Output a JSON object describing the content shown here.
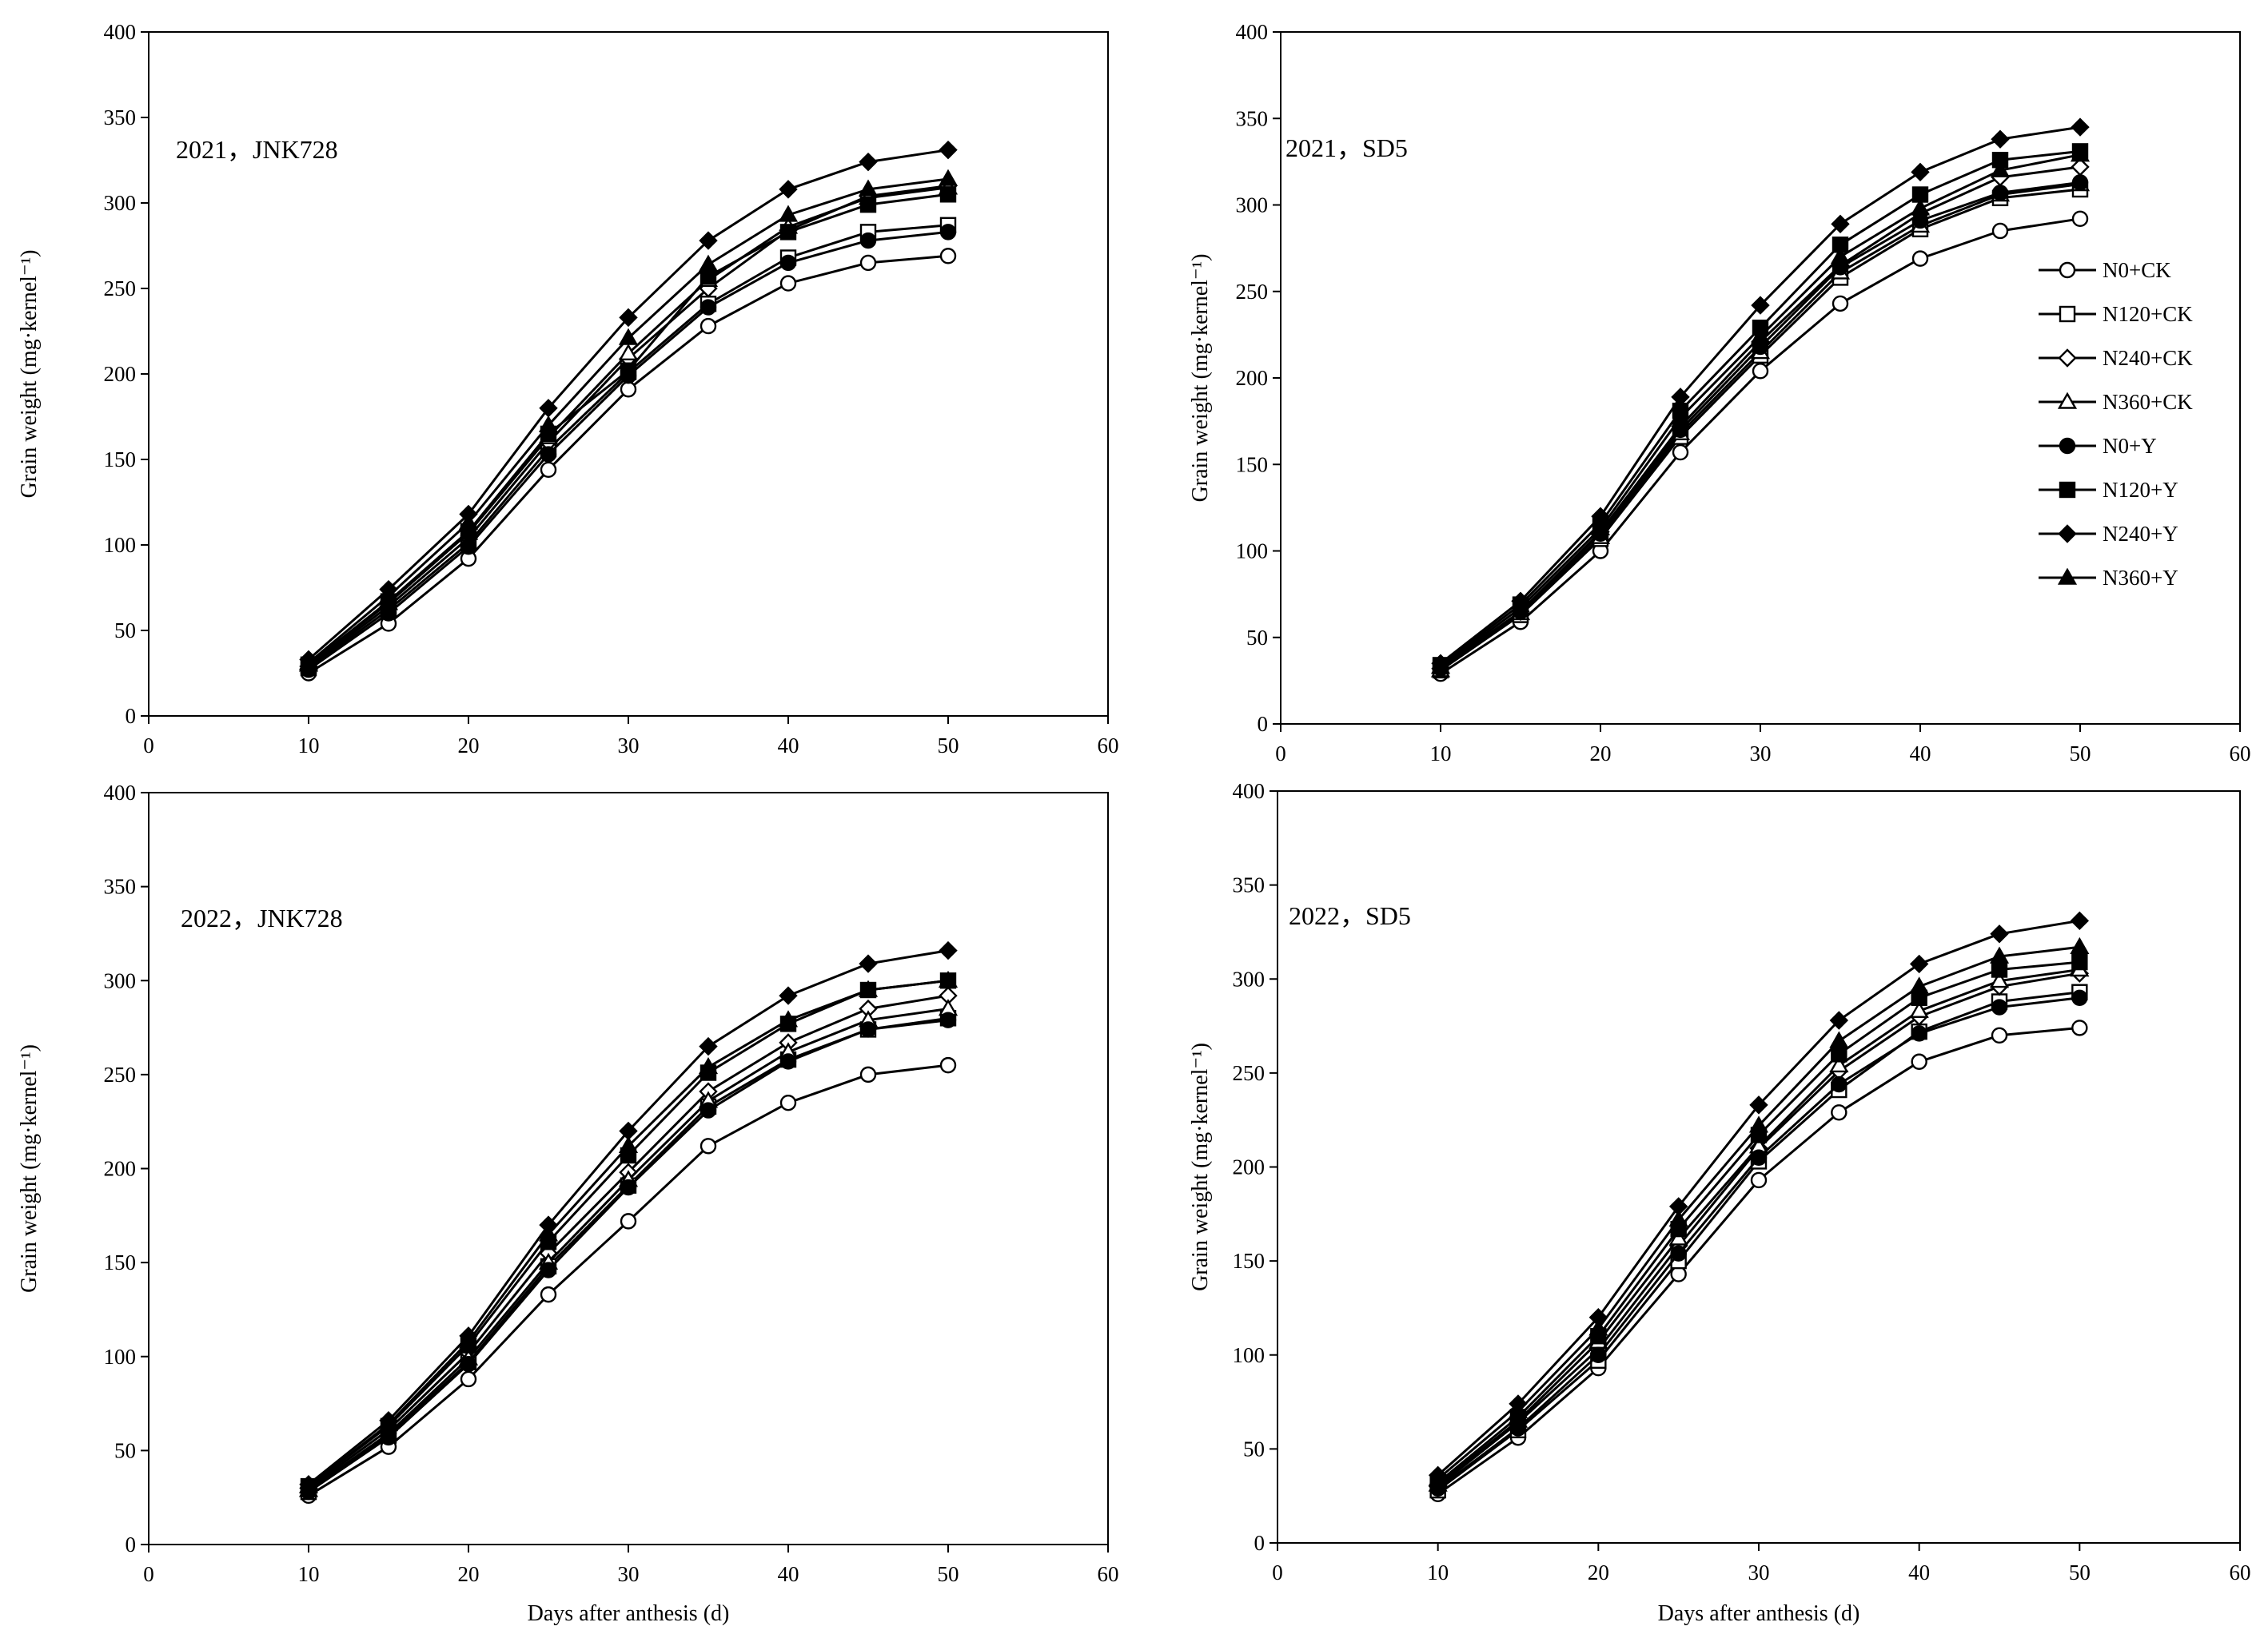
{
  "chart_data": [
    {
      "type": "line",
      "title": "2021，JNK728",
      "xlabel": "",
      "ylabel": "Grain weight (mg·kernel⁻¹)",
      "xlim": [
        0,
        60
      ],
      "ylim": [
        0,
        400
      ],
      "xticks": [
        0,
        10,
        20,
        30,
        40,
        50,
        60
      ],
      "yticks": [
        0,
        50,
        100,
        150,
        200,
        250,
        300,
        350,
        400
      ],
      "x": [
        10,
        15,
        20,
        25,
        30,
        35,
        40,
        45,
        50
      ],
      "series": [
        {
          "name": "N0+CK",
          "marker": "circle-open",
          "values": [
            25,
            54,
            92,
            144,
            191,
            228,
            253,
            265,
            269
          ]
        },
        {
          "name": "N120+CK",
          "marker": "square-open",
          "values": [
            28,
            62,
            101,
            156,
            201,
            241,
            268,
            283,
            287
          ]
        },
        {
          "name": "N240+CK",
          "marker": "diamond-open",
          "values": [
            29,
            64,
            104,
            160,
            209,
            250,
            284,
            304,
            310
          ]
        },
        {
          "name": "N360+CK",
          "marker": "triangle-open",
          "values": [
            30,
            66,
            107,
            163,
            212,
            255,
            286,
            303,
            309
          ]
        },
        {
          "name": "N0+Y",
          "marker": "circle",
          "values": [
            27,
            60,
            99,
            153,
            199,
            239,
            265,
            278,
            283
          ]
        },
        {
          "name": "N120+Y",
          "marker": "square",
          "values": [
            30,
            67,
            108,
            165,
            202,
            257,
            283,
            299,
            305
          ]
        },
        {
          "name": "N240+Y",
          "marker": "diamond",
          "values": [
            33,
            74,
            118,
            180,
            233,
            278,
            308,
            324,
            331
          ]
        },
        {
          "name": "N360+Y",
          "marker": "triangle",
          "values": [
            31,
            70,
            113,
            170,
            221,
            264,
            293,
            308,
            314
          ]
        }
      ]
    },
    {
      "type": "line",
      "title": "2021，SD5",
      "xlabel": "",
      "ylabel": "Grain weight (mg·kernel⁻¹)",
      "xlim": [
        0,
        60
      ],
      "ylim": [
        0,
        400
      ],
      "xticks": [
        0,
        10,
        20,
        30,
        40,
        50,
        60
      ],
      "yticks": [
        0,
        50,
        100,
        150,
        200,
        250,
        300,
        350,
        400
      ],
      "x": [
        10,
        15,
        20,
        25,
        30,
        35,
        40,
        45,
        50
      ],
      "legend": {
        "position": "right",
        "entries": [
          "N0+CK",
          "N120+CK",
          "N240+CK",
          "N360+CK",
          "N0+Y",
          "N120+Y",
          "N240+Y",
          "N360+Y"
        ]
      },
      "series": [
        {
          "name": "N0+CK",
          "marker": "circle-open",
          "values": [
            29,
            59,
            100,
            157,
            204,
            243,
            269,
            285,
            292
          ]
        },
        {
          "name": "N120+CK",
          "marker": "square-open",
          "values": [
            31,
            63,
            107,
            166,
            213,
            258,
            286,
            304,
            309
          ]
        },
        {
          "name": "N240+CK",
          "marker": "diamond-open",
          "values": [
            32,
            65,
            111,
            172,
            221,
            265,
            295,
            316,
            322
          ]
        },
        {
          "name": "N360+CK",
          "marker": "triangle-open",
          "values": [
            31,
            64,
            108,
            168,
            215,
            261,
            288,
            306,
            312
          ]
        },
        {
          "name": "N0+Y",
          "marker": "circle",
          "values": [
            32,
            65,
            110,
            170,
            218,
            264,
            291,
            307,
            313
          ]
        },
        {
          "name": "N120+Y",
          "marker": "square",
          "values": [
            34,
            69,
            116,
            181,
            229,
            277,
            306,
            326,
            331
          ]
        },
        {
          "name": "N240+Y",
          "marker": "diamond",
          "values": [
            35,
            71,
            120,
            189,
            242,
            289,
            319,
            338,
            345
          ]
        },
        {
          "name": "N360+Y",
          "marker": "triangle",
          "values": [
            33,
            67,
            113,
            177,
            224,
            270,
            298,
            320,
            329
          ]
        }
      ]
    },
    {
      "type": "line",
      "title": "2022，JNK728",
      "xlabel": "Days after anthesis (d)",
      "ylabel": "Grain weight (mg·kernel⁻¹)",
      "xlim": [
        0,
        60
      ],
      "ylim": [
        0,
        400
      ],
      "xticks": [
        0,
        10,
        20,
        30,
        40,
        50,
        60
      ],
      "yticks": [
        0,
        50,
        100,
        150,
        200,
        250,
        300,
        350,
        400
      ],
      "x": [
        10,
        15,
        20,
        25,
        30,
        35,
        40,
        45,
        50
      ],
      "series": [
        {
          "name": "N0+CK",
          "marker": "circle-open",
          "values": [
            26,
            52,
            88,
            133,
            172,
            212,
            235,
            250,
            255
          ]
        },
        {
          "name": "N120+CK",
          "marker": "square-open",
          "values": [
            28,
            58,
            97,
            148,
            191,
            233,
            258,
            274,
            280
          ]
        },
        {
          "name": "N240+CK",
          "marker": "diamond-open",
          "values": [
            30,
            61,
            102,
            155,
            198,
            241,
            267,
            285,
            292
          ]
        },
        {
          "name": "N360+CK",
          "marker": "triangle-open",
          "values": [
            29,
            59,
            99,
            150,
            194,
            236,
            262,
            279,
            285
          ]
        },
        {
          "name": "N0+Y",
          "marker": "circle",
          "values": [
            28,
            57,
            96,
            146,
            190,
            231,
            257,
            274,
            279
          ]
        },
        {
          "name": "N120+Y",
          "marker": "square",
          "values": [
            31,
            63,
            106,
            161,
            207,
            251,
            277,
            295,
            300
          ]
        },
        {
          "name": "N240+Y",
          "marker": "diamond",
          "values": [
            32,
            66,
            111,
            170,
            220,
            265,
            292,
            309,
            316
          ]
        },
        {
          "name": "N360+Y",
          "marker": "triangle",
          "values": [
            31,
            64,
            108,
            165,
            212,
            254,
            279,
            295,
            300
          ]
        }
      ]
    },
    {
      "type": "line",
      "title": "2022，SD5",
      "xlabel": "Days after anthesis (d)",
      "ylabel": "Grain weight (mg·kernel⁻¹)",
      "xlim": [
        0,
        60
      ],
      "ylim": [
        0,
        400
      ],
      "xticks": [
        0,
        10,
        20,
        30,
        40,
        50,
        60
      ],
      "yticks": [
        0,
        50,
        100,
        150,
        200,
        250,
        300,
        350,
        400
      ],
      "x": [
        10,
        15,
        20,
        25,
        30,
        35,
        40,
        45,
        50
      ],
      "series": [
        {
          "name": "N0+CK",
          "marker": "circle-open",
          "values": [
            26,
            56,
            93,
            143,
            193,
            229,
            256,
            270,
            274
          ]
        },
        {
          "name": "N120+CK",
          "marker": "square-open",
          "values": [
            28,
            60,
            97,
            150,
            203,
            241,
            272,
            288,
            293
          ]
        },
        {
          "name": "N240+CK",
          "marker": "diamond-open",
          "values": [
            30,
            64,
            103,
            158,
            210,
            251,
            280,
            296,
            303
          ]
        },
        {
          "name": "N360+CK",
          "marker": "triangle-open",
          "values": [
            31,
            65,
            107,
            162,
            211,
            254,
            283,
            299,
            305
          ]
        },
        {
          "name": "N0+Y",
          "marker": "circle",
          "values": [
            29,
            61,
            100,
            154,
            205,
            244,
            271,
            285,
            290
          ]
        },
        {
          "name": "N120+Y",
          "marker": "square",
          "values": [
            32,
            67,
            110,
            167,
            217,
            260,
            290,
            305,
            309
          ]
        },
        {
          "name": "N240+Y",
          "marker": "diamond",
          "values": [
            36,
            74,
            120,
            179,
            233,
            278,
            308,
            324,
            331
          ]
        },
        {
          "name": "N360+Y",
          "marker": "triangle",
          "values": [
            34,
            70,
            114,
            172,
            222,
            267,
            296,
            312,
            317
          ]
        }
      ]
    }
  ]
}
